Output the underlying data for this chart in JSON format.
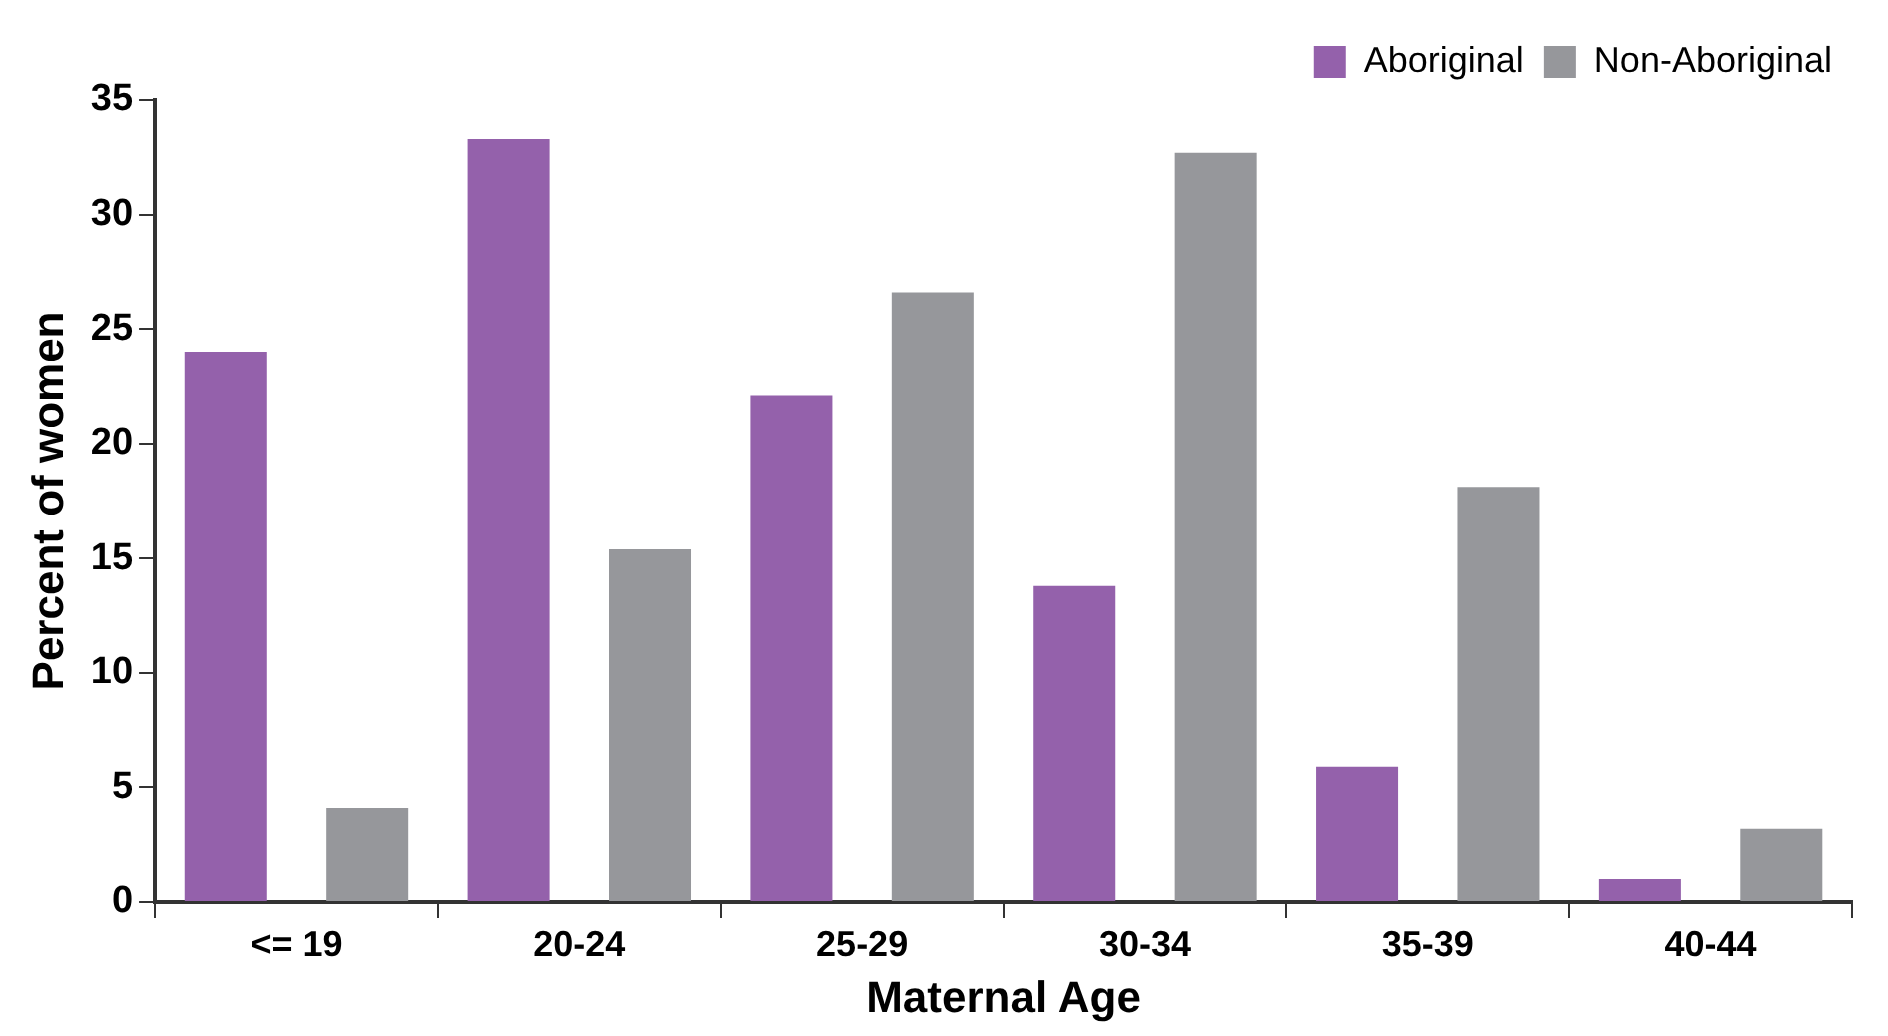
{
  "chart_data": {
    "type": "bar",
    "xlabel": "Maternal Age",
    "ylabel": "Percent of women",
    "categories": [
      "<= 19",
      "20-24",
      "25-29",
      "30-34",
      "35-39",
      "40-44"
    ],
    "series": [
      {
        "name": "Aboriginal",
        "color": "#9461ab",
        "values": [
          24.0,
          33.3,
          22.1,
          13.8,
          5.9,
          1.0
        ]
      },
      {
        "name": "Non-Aboriginal",
        "color": "#96979b",
        "values": [
          4.1,
          15.4,
          26.6,
          32.7,
          18.1,
          3.2
        ]
      }
    ],
    "ylim": [
      0,
      35
    ],
    "yticks": [
      0,
      5,
      10,
      15,
      20,
      25,
      30,
      35
    ],
    "grid": false,
    "legend": "top right"
  }
}
